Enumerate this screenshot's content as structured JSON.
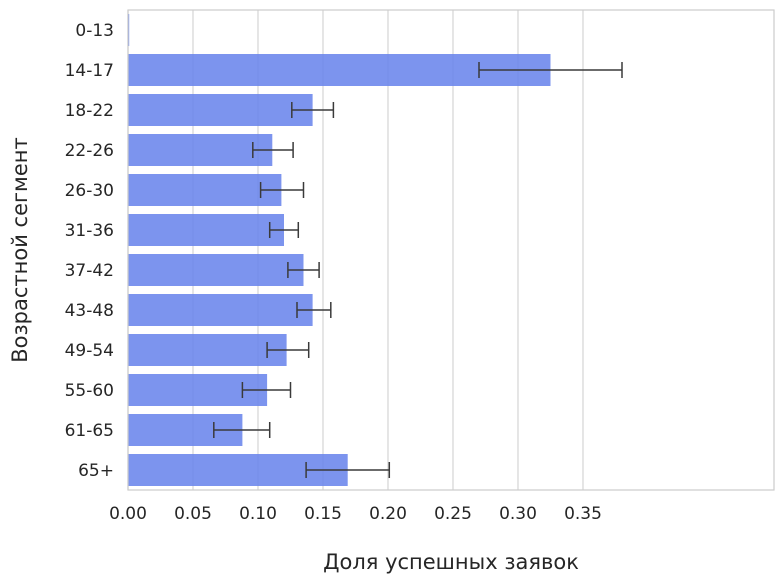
{
  "chart_data": {
    "type": "bar",
    "orientation": "horizontal",
    "xlabel": "Доля успешных заявок",
    "ylabel": "Возрастной сегмент",
    "xlim": [
      0,
      0.4
    ],
    "x_ticks": [
      "0.00",
      "0.05",
      "0.10",
      "0.15",
      "0.20",
      "0.25",
      "0.30",
      "0.35"
    ],
    "grid": "vertical",
    "bar_color": "#6a85ec",
    "error_bar_color": "#3a3a3a",
    "categories": [
      "0-13",
      "14-17",
      "18-22",
      "22-26",
      "26-30",
      "31-36",
      "37-42",
      "43-48",
      "49-54",
      "55-60",
      "61-65",
      "65+"
    ],
    "values": [
      0.0,
      0.325,
      0.142,
      0.111,
      0.118,
      0.12,
      0.135,
      0.142,
      0.122,
      0.107,
      0.088,
      0.169
    ],
    "error_low": [
      0.0,
      0.27,
      0.126,
      0.096,
      0.102,
      0.109,
      0.123,
      0.13,
      0.107,
      0.088,
      0.066,
      0.137
    ],
    "error_high": [
      0.0,
      0.38,
      0.158,
      0.127,
      0.135,
      0.131,
      0.147,
      0.156,
      0.139,
      0.125,
      0.109,
      0.201
    ]
  }
}
